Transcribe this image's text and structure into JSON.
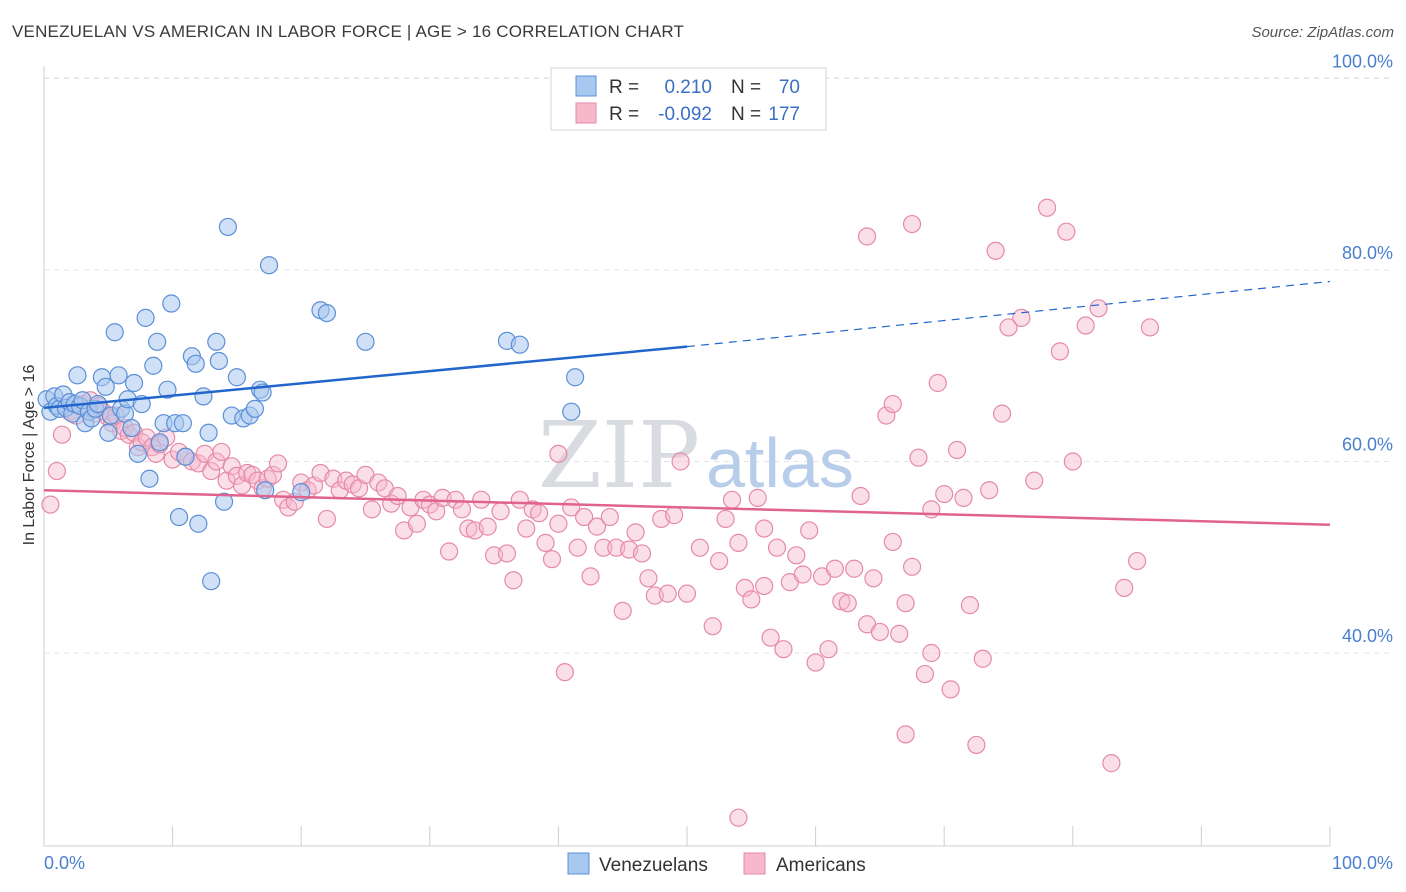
{
  "title": "VENEZUELAN VS AMERICAN IN LABOR FORCE | AGE > 16 CORRELATION CHART",
  "source": "Source: ZipAtlas.com",
  "watermark": {
    "part1": "ZIP",
    "part2": "atlas"
  },
  "chart_data": {
    "type": "scatter",
    "ylabel": "In Labor Force | Age > 16",
    "xlim": [
      0,
      100
    ],
    "ylim": [
      20,
      103
    ],
    "y_ticks": [
      40,
      60,
      80,
      100
    ],
    "y_tick_labels": [
      "40.0%",
      "60.0%",
      "80.0%",
      "100.0%"
    ],
    "x_tick_labels": {
      "min": "0.0%",
      "max": "100.0%"
    },
    "grid": true,
    "legend_placement": "top-center",
    "colors": {
      "venezuelans_fill": "#a9c8f0",
      "venezuelans_stroke": "#5b8fd6",
      "venezuelans_line": "#2266cc",
      "americans_fill": "#f7b8cb",
      "americans_stroke": "#e58aa8",
      "americans_line": "#e0638e"
    },
    "legend": {
      "rows": [
        {
          "r_label": "R =",
          "r_value": "0.210",
          "n_label": "N =",
          "n_value": "70"
        },
        {
          "r_label": "R =",
          "r_value": "-0.092",
          "n_label": "N =",
          "n_value": "177"
        }
      ]
    },
    "series": [
      {
        "name": "Venezuelans",
        "trend": {
          "x": [
            0,
            50,
            100
          ],
          "y": [
            65.6,
            72.0,
            78.8
          ],
          "solid_until": 50
        },
        "points": [
          [
            0.2,
            66.5
          ],
          [
            0.5,
            65.2
          ],
          [
            0.8,
            66.8
          ],
          [
            1.0,
            65.8
          ],
          [
            1.2,
            65.5
          ],
          [
            1.5,
            67.0
          ],
          [
            1.7,
            65.6
          ],
          [
            2.0,
            66.2
          ],
          [
            2.2,
            65.0
          ],
          [
            2.4,
            66.0
          ],
          [
            2.6,
            69.0
          ],
          [
            2.8,
            65.8
          ],
          [
            3.0,
            66.4
          ],
          [
            3.2,
            64.0
          ],
          [
            3.5,
            65.2
          ],
          [
            3.7,
            64.5
          ],
          [
            4.0,
            65.5
          ],
          [
            4.2,
            66.0
          ],
          [
            4.5,
            68.8
          ],
          [
            4.8,
            67.8
          ],
          [
            5.0,
            63.0
          ],
          [
            5.2,
            64.8
          ],
          [
            5.5,
            73.5
          ],
          [
            5.8,
            69.0
          ],
          [
            6.0,
            65.5
          ],
          [
            6.3,
            65.0
          ],
          [
            6.5,
            66.5
          ],
          [
            6.8,
            63.5
          ],
          [
            7.0,
            68.2
          ],
          [
            7.3,
            60.8
          ],
          [
            7.6,
            66.0
          ],
          [
            7.9,
            75.0
          ],
          [
            8.2,
            58.2
          ],
          [
            8.5,
            70.0
          ],
          [
            8.8,
            72.5
          ],
          [
            9.0,
            62.0
          ],
          [
            9.3,
            64.0
          ],
          [
            9.6,
            67.5
          ],
          [
            9.9,
            76.5
          ],
          [
            10.2,
            64.0
          ],
          [
            10.5,
            54.2
          ],
          [
            10.8,
            64.0
          ],
          [
            11.0,
            60.5
          ],
          [
            11.5,
            71.0
          ],
          [
            11.8,
            70.2
          ],
          [
            12.0,
            53.5
          ],
          [
            12.4,
            66.8
          ],
          [
            12.8,
            63.0
          ],
          [
            13.0,
            47.5
          ],
          [
            13.4,
            72.5
          ],
          [
            13.6,
            70.5
          ],
          [
            14.0,
            55.8
          ],
          [
            14.3,
            84.5
          ],
          [
            14.6,
            64.8
          ],
          [
            15.0,
            68.8
          ],
          [
            15.5,
            64.5
          ],
          [
            16.0,
            64.8
          ],
          [
            16.4,
            65.5
          ],
          [
            16.8,
            67.5
          ],
          [
            17.0,
            67.2
          ],
          [
            17.5,
            80.5
          ],
          [
            20.0,
            56.8
          ],
          [
            21.5,
            75.8
          ],
          [
            22.0,
            75.5
          ],
          [
            25.0,
            72.5
          ],
          [
            36.0,
            72.6
          ],
          [
            37.0,
            72.2
          ],
          [
            41.0,
            65.2
          ],
          [
            41.3,
            68.8
          ],
          [
            17.2,
            57.0
          ]
        ]
      },
      {
        "name": "Americans",
        "trend": {
          "x": [
            0,
            100
          ],
          "y": [
            57.0,
            53.4
          ]
        },
        "points": [
          [
            0.5,
            55.5
          ],
          [
            1.0,
            59.0
          ],
          [
            1.4,
            62.8
          ],
          [
            2.0,
            65.2
          ],
          [
            2.5,
            64.8
          ],
          [
            3.0,
            66.0
          ],
          [
            3.3,
            65.5
          ],
          [
            3.6,
            66.4
          ],
          [
            4.0,
            65.0
          ],
          [
            4.3,
            65.8
          ],
          [
            4.6,
            65.2
          ],
          [
            5.0,
            64.6
          ],
          [
            5.3,
            64.0
          ],
          [
            5.6,
            64.8
          ],
          [
            6.0,
            63.2
          ],
          [
            6.3,
            63.5
          ],
          [
            6.6,
            62.8
          ],
          [
            7.0,
            63.0
          ],
          [
            7.3,
            61.5
          ],
          [
            7.6,
            62.0
          ],
          [
            8.0,
            62.5
          ],
          [
            8.4,
            61.5
          ],
          [
            8.7,
            60.8
          ],
          [
            9.0,
            61.8
          ],
          [
            9.5,
            62.5
          ],
          [
            10.0,
            60.2
          ],
          [
            10.5,
            61.0
          ],
          [
            11.0,
            60.5
          ],
          [
            11.5,
            60.0
          ],
          [
            12.0,
            59.8
          ],
          [
            12.5,
            60.8
          ],
          [
            13.0,
            59.0
          ],
          [
            13.4,
            60.0
          ],
          [
            13.8,
            61.0
          ],
          [
            14.2,
            58.0
          ],
          [
            14.6,
            59.5
          ],
          [
            15.0,
            58.5
          ],
          [
            15.4,
            57.5
          ],
          [
            15.8,
            58.8
          ],
          [
            16.2,
            58.6
          ],
          [
            16.6,
            58.0
          ],
          [
            17.0,
            57.2
          ],
          [
            17.4,
            58.2
          ],
          [
            17.8,
            58.6
          ],
          [
            18.2,
            59.8
          ],
          [
            18.6,
            56.0
          ],
          [
            19.0,
            55.2
          ],
          [
            19.5,
            55.8
          ],
          [
            20.0,
            57.8
          ],
          [
            20.5,
            57.0
          ],
          [
            21.0,
            57.5
          ],
          [
            21.5,
            58.8
          ],
          [
            22.0,
            54.0
          ],
          [
            22.5,
            58.2
          ],
          [
            23.0,
            57.0
          ],
          [
            23.5,
            58.0
          ],
          [
            24.0,
            57.6
          ],
          [
            24.5,
            57.2
          ],
          [
            25.0,
            58.6
          ],
          [
            25.5,
            55.0
          ],
          [
            26.0,
            57.8
          ],
          [
            26.5,
            57.2
          ],
          [
            27.0,
            55.6
          ],
          [
            27.5,
            56.4
          ],
          [
            28.0,
            52.8
          ],
          [
            28.5,
            55.2
          ],
          [
            29.0,
            53.5
          ],
          [
            29.5,
            56.0
          ],
          [
            30.0,
            55.5
          ],
          [
            30.5,
            54.8
          ],
          [
            31.0,
            56.2
          ],
          [
            31.5,
            50.6
          ],
          [
            32.0,
            56.0
          ],
          [
            32.5,
            55.0
          ],
          [
            33.0,
            53.0
          ],
          [
            33.5,
            52.8
          ],
          [
            34.0,
            56.0
          ],
          [
            34.5,
            53.2
          ],
          [
            35.0,
            50.2
          ],
          [
            35.5,
            54.8
          ],
          [
            36.0,
            50.4
          ],
          [
            36.5,
            47.6
          ],
          [
            37.0,
            56.0
          ],
          [
            37.5,
            53.0
          ],
          [
            38.0,
            55.0
          ],
          [
            38.5,
            54.6
          ],
          [
            39.0,
            51.5
          ],
          [
            39.5,
            49.8
          ],
          [
            40.0,
            53.5
          ],
          [
            40.5,
            38.0
          ],
          [
            41.0,
            55.2
          ],
          [
            41.5,
            51.0
          ],
          [
            42.0,
            54.2
          ],
          [
            42.5,
            48.0
          ],
          [
            43.0,
            53.2
          ],
          [
            43.5,
            51.0
          ],
          [
            44.0,
            54.2
          ],
          [
            44.5,
            51.0
          ],
          [
            45.0,
            44.4
          ],
          [
            45.5,
            50.8
          ],
          [
            46.0,
            52.6
          ],
          [
            46.5,
            50.4
          ],
          [
            47.0,
            47.8
          ],
          [
            47.5,
            46.0
          ],
          [
            48.0,
            54.0
          ],
          [
            48.5,
            46.2
          ],
          [
            49.0,
            54.4
          ],
          [
            49.5,
            60.0
          ],
          [
            50.0,
            46.2
          ],
          [
            51.0,
            51.0
          ],
          [
            52.0,
            42.8
          ],
          [
            52.5,
            49.6
          ],
          [
            53.0,
            54.0
          ],
          [
            53.5,
            56.0
          ],
          [
            54.0,
            51.5
          ],
          [
            54.5,
            46.8
          ],
          [
            55.0,
            45.6
          ],
          [
            55.5,
            56.2
          ],
          [
            56.0,
            53.0
          ],
          [
            56.5,
            41.6
          ],
          [
            57.0,
            51.0
          ],
          [
            57.5,
            40.4
          ],
          [
            58.0,
            47.4
          ],
          [
            58.5,
            50.2
          ],
          [
            59.0,
            48.2
          ],
          [
            59.5,
            52.8
          ],
          [
            60.0,
            39.0
          ],
          [
            60.5,
            48.0
          ],
          [
            61.0,
            40.4
          ],
          [
            61.5,
            48.8
          ],
          [
            62.0,
            45.4
          ],
          [
            62.5,
            45.2
          ],
          [
            63.0,
            48.8
          ],
          [
            63.5,
            56.4
          ],
          [
            64.0,
            43.0
          ],
          [
            64.5,
            47.8
          ],
          [
            65.0,
            42.2
          ],
          [
            65.5,
            64.8
          ],
          [
            66.0,
            51.6
          ],
          [
            66.5,
            42.0
          ],
          [
            67.0,
            45.2
          ],
          [
            67.5,
            49.0
          ],
          [
            68.0,
            60.4
          ],
          [
            68.5,
            37.8
          ],
          [
            69.0,
            40.0
          ],
          [
            69.5,
            68.2
          ],
          [
            70.0,
            56.6
          ],
          [
            70.5,
            36.2
          ],
          [
            71.0,
            61.2
          ],
          [
            71.5,
            56.2
          ],
          [
            72.0,
            45.0
          ],
          [
            72.5,
            30.4
          ],
          [
            73.0,
            39.4
          ],
          [
            73.5,
            57.0
          ],
          [
            74.0,
            82.0
          ],
          [
            75.0,
            74.0
          ],
          [
            76.0,
            75.0
          ],
          [
            77.0,
            58.0
          ],
          [
            78.0,
            86.5
          ],
          [
            79.0,
            71.5
          ],
          [
            79.5,
            84.0
          ],
          [
            80.0,
            60.0
          ],
          [
            81.0,
            74.2
          ],
          [
            82.0,
            76.0
          ],
          [
            83.0,
            28.5
          ],
          [
            84.0,
            46.8
          ],
          [
            85.0,
            49.6
          ],
          [
            86.0,
            74.0
          ],
          [
            54.0,
            22.8
          ],
          [
            40.0,
            60.8
          ],
          [
            67.0,
            31.5
          ],
          [
            69.0,
            55.0
          ],
          [
            56.0,
            47.0
          ],
          [
            64.0,
            83.5
          ],
          [
            67.5,
            84.8
          ],
          [
            74.5,
            65.0
          ],
          [
            66.0,
            66.0
          ]
        ]
      }
    ]
  }
}
